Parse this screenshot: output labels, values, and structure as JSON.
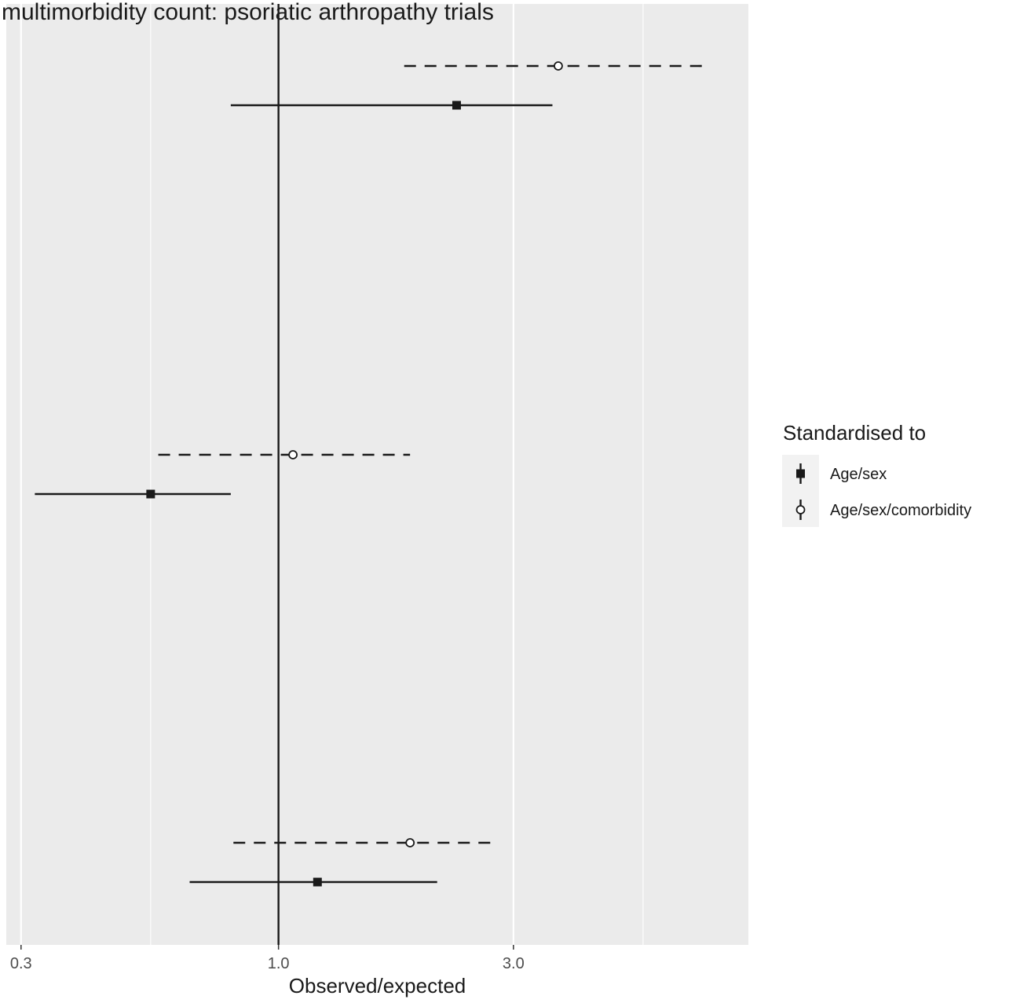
{
  "chart_data": {
    "type": "forest",
    "title": "multimorbidity count: psoriatic arthropathy trials",
    "xlabel": "Observed/expected",
    "x_scale": "log",
    "xlim": [
      0.28,
      9.0
    ],
    "x_ticks": [
      0.3,
      1.0,
      3.0
    ],
    "x_tick_labels": [
      "0.3",
      "1.0",
      "3.0"
    ],
    "x_minor_gridlines": [
      0.55,
      5.5
    ],
    "reference_line": 1.0,
    "groups": 3,
    "series": [
      {
        "name": "Age/sex",
        "marker": "filled-square",
        "line": "solid",
        "points": [
          {
            "group": 1,
            "est": 2.3,
            "lo": 0.8,
            "hi": 3.6
          },
          {
            "group": 2,
            "est": 0.55,
            "lo": 0.32,
            "hi": 0.8
          },
          {
            "group": 3,
            "est": 1.2,
            "lo": 0.66,
            "hi": 2.1
          }
        ]
      },
      {
        "name": "Age/sex/comorbidity",
        "marker": "open-circle",
        "line": "dashed",
        "points": [
          {
            "group": 1,
            "est": 3.7,
            "lo": 1.8,
            "hi": 7.5
          },
          {
            "group": 2,
            "est": 1.07,
            "lo": 0.57,
            "hi": 1.85
          },
          {
            "group": 3,
            "est": 1.85,
            "lo": 0.81,
            "hi": 2.8
          }
        ]
      }
    ],
    "legend": {
      "title": "Standardised to",
      "position": "right",
      "items": [
        "Age/sex",
        "Age/sex/comorbidity"
      ]
    },
    "colors": {
      "panel": "#ebebeb",
      "grid": "#ffffff",
      "ink": "#1a1a1a",
      "legend_key": "#f2f2f2"
    }
  }
}
